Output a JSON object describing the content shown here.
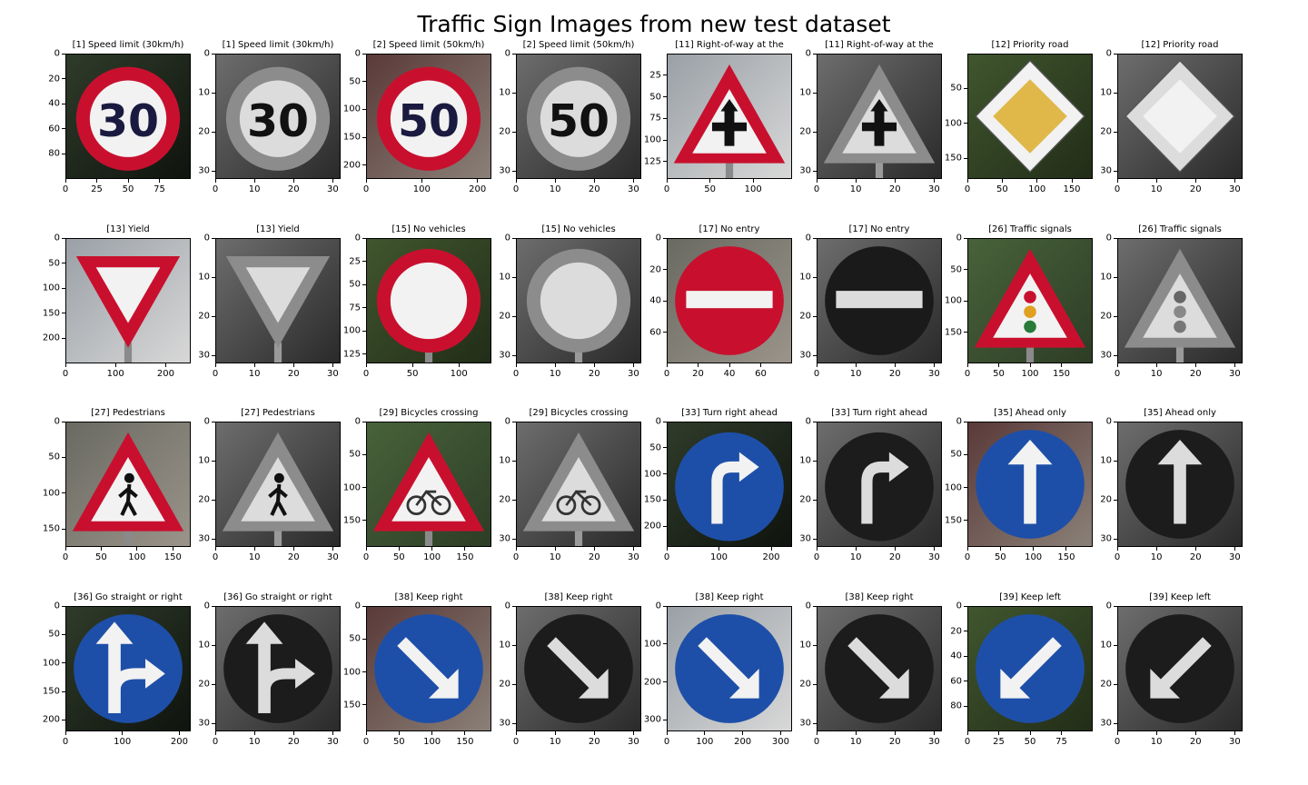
{
  "chart_data": {
    "type": "image-grid",
    "title": "Traffic Sign Images from new test dataset",
    "rows": 4,
    "cols": 8,
    "panels": [
      {
        "title": "[1] Speed limit (30km/h)",
        "sign": "speed-limit-sign",
        "style": "color",
        "width": 100,
        "height": 100,
        "xticks": [
          0,
          25,
          50,
          75
        ],
        "yticks": [
          0,
          20,
          40,
          60,
          80
        ],
        "text": "30"
      },
      {
        "title": "[1] Speed limit (30km/h)",
        "sign": "speed-limit-sign",
        "style": "gray",
        "width": 32,
        "height": 32,
        "xticks": [
          0,
          10,
          20,
          30
        ],
        "yticks": [
          0,
          10,
          20,
          30
        ],
        "text": "30"
      },
      {
        "title": "[2] Speed limit (50km/h)",
        "sign": "speed-limit-sign",
        "style": "color",
        "width": 225,
        "height": 225,
        "xticks": [
          0,
          100,
          200
        ],
        "yticks": [
          0,
          50,
          100,
          150,
          200
        ],
        "text": "50"
      },
      {
        "title": "[2] Speed limit (50km/h)",
        "sign": "speed-limit-sign",
        "style": "gray",
        "width": 32,
        "height": 32,
        "xticks": [
          0,
          10,
          20,
          30
        ],
        "yticks": [
          0,
          10,
          20,
          30
        ],
        "text": "50"
      },
      {
        "title": "[11] Right-of-way at the",
        "sign": "right-of-way-sign",
        "style": "color",
        "width": 145,
        "height": 145,
        "xticks": [
          0,
          50,
          100
        ],
        "yticks": [
          25,
          50,
          75,
          100,
          125
        ]
      },
      {
        "title": "[11] Right-of-way at the",
        "sign": "right-of-way-sign",
        "style": "gray",
        "width": 32,
        "height": 32,
        "xticks": [
          0,
          10,
          20,
          30
        ],
        "yticks": [
          0,
          10,
          20,
          30
        ]
      },
      {
        "title": "[12] Priority road",
        "sign": "priority-road-sign",
        "style": "color",
        "width": 180,
        "height": 180,
        "xticks": [
          0,
          50,
          100,
          150
        ],
        "yticks": [
          50,
          100,
          150
        ]
      },
      {
        "title": "[12] Priority road",
        "sign": "priority-road-sign",
        "style": "gray",
        "width": 32,
        "height": 32,
        "xticks": [
          0,
          10,
          20,
          30
        ],
        "yticks": [
          0,
          10,
          20,
          30
        ]
      },
      {
        "title": "[13] Yield",
        "sign": "yield-sign",
        "style": "color",
        "width": 250,
        "height": 250,
        "xticks": [
          0,
          100,
          200
        ],
        "yticks": [
          0,
          50,
          100,
          150,
          200
        ]
      },
      {
        "title": "[13] Yield",
        "sign": "yield-sign",
        "style": "gray",
        "width": 32,
        "height": 32,
        "xticks": [
          0,
          10,
          20,
          30
        ],
        "yticks": [
          0,
          10,
          20,
          30
        ]
      },
      {
        "title": "[15] No vehicles",
        "sign": "no-vehicles-sign",
        "style": "color",
        "width": 135,
        "height": 135,
        "xticks": [
          0,
          50,
          100
        ],
        "yticks": [
          0,
          25,
          50,
          75,
          100,
          125
        ]
      },
      {
        "title": "[15] No vehicles",
        "sign": "no-vehicles-sign",
        "style": "gray",
        "width": 32,
        "height": 32,
        "xticks": [
          0,
          10,
          20,
          30
        ],
        "yticks": [
          0,
          10,
          20,
          30
        ]
      },
      {
        "title": "[17] No entry",
        "sign": "no-entry-sign",
        "style": "color",
        "width": 80,
        "height": 80,
        "xticks": [
          0,
          20,
          40,
          60
        ],
        "yticks": [
          0,
          20,
          40,
          60
        ]
      },
      {
        "title": "[17] No entry",
        "sign": "no-entry-sign",
        "style": "gray",
        "width": 32,
        "height": 32,
        "xticks": [
          0,
          10,
          20,
          30
        ],
        "yticks": [
          0,
          10,
          20,
          30
        ]
      },
      {
        "title": "[26] Traffic signals",
        "sign": "traffic-signals-sign",
        "style": "color",
        "width": 200,
        "height": 200,
        "xticks": [
          0,
          50,
          100,
          150
        ],
        "yticks": [
          0,
          50,
          100,
          150
        ]
      },
      {
        "title": "[26] Traffic signals",
        "sign": "traffic-signals-sign",
        "style": "gray",
        "width": 32,
        "height": 32,
        "xticks": [
          0,
          10,
          20,
          30
        ],
        "yticks": [
          0,
          10,
          20,
          30
        ]
      },
      {
        "title": "[27] Pedestrians",
        "sign": "pedestrians-sign",
        "style": "color",
        "width": 175,
        "height": 175,
        "xticks": [
          0,
          50,
          100,
          150
        ],
        "yticks": [
          0,
          50,
          100,
          150
        ]
      },
      {
        "title": "[27] Pedestrians",
        "sign": "pedestrians-sign",
        "style": "gray",
        "width": 32,
        "height": 32,
        "xticks": [
          0,
          10,
          20,
          30
        ],
        "yticks": [
          0,
          10,
          20,
          30
        ]
      },
      {
        "title": "[29] Bicycles crossing",
        "sign": "bicycles-crossing-sign",
        "style": "color",
        "width": 190,
        "height": 190,
        "xticks": [
          0,
          50,
          100,
          150
        ],
        "yticks": [
          0,
          50,
          100,
          150
        ]
      },
      {
        "title": "[29] Bicycles crossing",
        "sign": "bicycles-crossing-sign",
        "style": "gray",
        "width": 32,
        "height": 32,
        "xticks": [
          0,
          10,
          20,
          30
        ],
        "yticks": [
          0,
          10,
          20,
          30
        ]
      },
      {
        "title": "[33] Turn right ahead",
        "sign": "turn-right-ahead-sign",
        "style": "color",
        "width": 240,
        "height": 240,
        "xticks": [
          0,
          100,
          200
        ],
        "yticks": [
          0,
          50,
          100,
          150,
          200
        ]
      },
      {
        "title": "[33] Turn right ahead",
        "sign": "turn-right-ahead-sign",
        "style": "gray",
        "width": 32,
        "height": 32,
        "xticks": [
          0,
          10,
          20,
          30
        ],
        "yticks": [
          0,
          10,
          20,
          30
        ]
      },
      {
        "title": "[35] Ahead only",
        "sign": "ahead-only-sign",
        "style": "color",
        "width": 190,
        "height": 190,
        "xticks": [
          0,
          50,
          100,
          150
        ],
        "yticks": [
          0,
          50,
          100,
          150
        ]
      },
      {
        "title": "[35] Ahead only",
        "sign": "ahead-only-sign",
        "style": "gray",
        "width": 32,
        "height": 32,
        "xticks": [
          0,
          10,
          20,
          30
        ],
        "yticks": [
          0,
          10,
          20,
          30
        ]
      },
      {
        "title": "[36] Go straight or right",
        "sign": "go-straight-or-right-sign",
        "style": "color",
        "width": 220,
        "height": 220,
        "xticks": [
          0,
          100,
          200
        ],
        "yticks": [
          0,
          50,
          100,
          150,
          200
        ]
      },
      {
        "title": "[36] Go straight or right",
        "sign": "go-straight-or-right-sign",
        "style": "gray",
        "width": 32,
        "height": 32,
        "xticks": [
          0,
          10,
          20,
          30
        ],
        "yticks": [
          0,
          10,
          20,
          30
        ]
      },
      {
        "title": "[38] Keep right",
        "sign": "keep-right-sign",
        "style": "color",
        "width": 190,
        "height": 190,
        "xticks": [
          0,
          50,
          100,
          150
        ],
        "yticks": [
          0,
          50,
          100,
          150
        ]
      },
      {
        "title": "[38] Keep right",
        "sign": "keep-right-sign",
        "style": "gray",
        "width": 32,
        "height": 32,
        "xticks": [
          0,
          10,
          20,
          30
        ],
        "yticks": [
          0,
          10,
          20,
          30
        ]
      },
      {
        "title": "[38] Keep right",
        "sign": "keep-right-sign",
        "style": "color",
        "width": 330,
        "height": 330,
        "xticks": [
          0,
          100,
          200,
          300
        ],
        "yticks": [
          0,
          100,
          200,
          300
        ]
      },
      {
        "title": "[38] Keep right",
        "sign": "keep-right-sign",
        "style": "gray",
        "width": 32,
        "height": 32,
        "xticks": [
          0,
          10,
          20,
          30
        ],
        "yticks": [
          0,
          10,
          20,
          30
        ]
      },
      {
        "title": "[39] Keep left",
        "sign": "keep-left-sign",
        "style": "color",
        "width": 100,
        "height": 100,
        "xticks": [
          0,
          25,
          50,
          75
        ],
        "yticks": [
          0,
          20,
          40,
          60,
          80
        ]
      },
      {
        "title": "[39] Keep left",
        "sign": "keep-left-sign",
        "style": "gray",
        "width": 32,
        "height": 32,
        "xticks": [
          0,
          10,
          20,
          30
        ],
        "yticks": [
          0,
          10,
          20,
          30
        ]
      }
    ]
  },
  "colors": {
    "sign_red": "#c8102e",
    "sign_blue": "#1e4fa8",
    "sign_yellow": "#e0b84a",
    "sign_white": "#f2f2f2",
    "gray_background": "#8a8a8a",
    "gray_dark": "#1c1c1c"
  }
}
